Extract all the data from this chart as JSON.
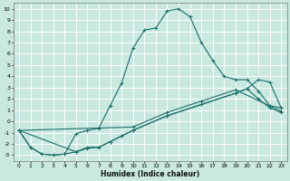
{
  "xlabel": "Humidex (Indice chaleur)",
  "xlim": [
    -0.5,
    23.5
  ],
  "ylim": [
    -3.5,
    10.5
  ],
  "xticks": [
    0,
    1,
    2,
    3,
    4,
    5,
    6,
    7,
    8,
    9,
    10,
    11,
    12,
    13,
    14,
    15,
    16,
    17,
    18,
    19,
    20,
    21,
    22,
    23
  ],
  "yticks": [
    -3,
    -2,
    -1,
    0,
    1,
    2,
    3,
    4,
    5,
    6,
    7,
    8,
    9,
    10
  ],
  "background_color": "#c8e8e0",
  "grid_color": "#b0d8d0",
  "line_color": "#1a6e6a",
  "line1_x": [
    0,
    1,
    2,
    3,
    4,
    5,
    6,
    7,
    8,
    9,
    10,
    11,
    12,
    13,
    14,
    15,
    16,
    17,
    18,
    19,
    20,
    21,
    22,
    23
  ],
  "line1_y": [
    -0.8,
    -2.3,
    -2.9,
    -3.0,
    -2.9,
    -1.1,
    -0.8,
    -0.6,
    1.4,
    3.4,
    6.5,
    8.1,
    8.3,
    9.8,
    10.0,
    9.3,
    7.0,
    5.4,
    4.0,
    3.7,
    3.7,
    2.7,
    1.4,
    1.2
  ],
  "line2_x": [
    0,
    1,
    2,
    3,
    4,
    5,
    6,
    7,
    8,
    9,
    10,
    13,
    16,
    19,
    20,
    21,
    22,
    23
  ],
  "line2_y": [
    -0.8,
    -2.3,
    -2.9,
    -3.0,
    -2.9,
    -2.7,
    -2.3,
    -2.3,
    -1.8,
    -1.3,
    -0.8,
    0.5,
    1.5,
    2.5,
    2.9,
    2.0,
    1.2,
    0.8
  ],
  "line3_x": [
    0,
    5,
    6,
    7,
    8,
    9,
    10,
    13,
    16,
    19,
    20,
    21,
    22,
    23
  ],
  "line3_y": [
    -0.8,
    -2.7,
    -2.4,
    -2.3,
    -1.8,
    -1.3,
    -0.8,
    0.5,
    1.5,
    2.5,
    2.9,
    3.7,
    3.5,
    1.2
  ],
  "line4_x": [
    0,
    10,
    13,
    16,
    19,
    23
  ],
  "line4_y": [
    -0.8,
    -0.5,
    0.8,
    1.8,
    2.8,
    0.9
  ]
}
